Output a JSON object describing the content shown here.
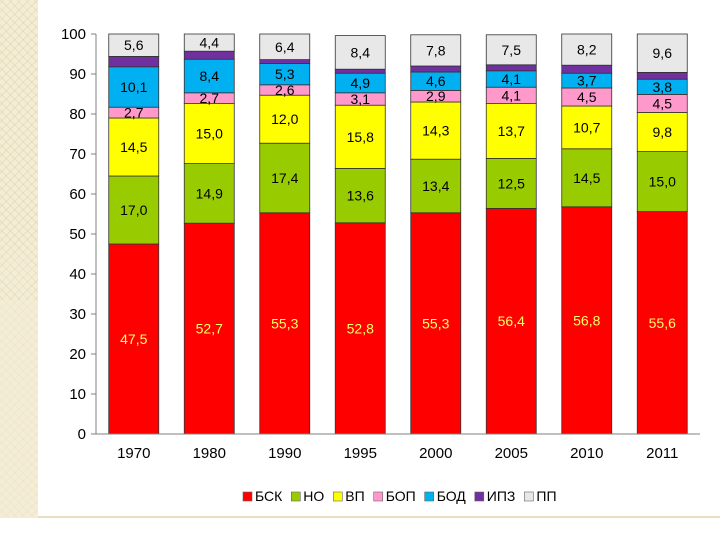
{
  "chart_data": {
    "type": "bar",
    "stacked": true,
    "categories": [
      "1970",
      "1980",
      "1990",
      "1995",
      "2000",
      "2005",
      "2010",
      "2011"
    ],
    "series": [
      {
        "name": "БСК",
        "color": "#ff0000",
        "label_color": "#ffff66",
        "values": [
          47.5,
          52.7,
          55.3,
          52.8,
          55.3,
          56.4,
          56.8,
          55.6
        ],
        "labels": [
          "47,5",
          "52,7",
          "55,3",
          "52,8",
          "55,3",
          "56,4",
          "56,8",
          "55,6"
        ]
      },
      {
        "name": "НО",
        "color": "#99cc00",
        "label_color": "#000000",
        "values": [
          17.0,
          14.9,
          17.4,
          13.6,
          13.4,
          12.5,
          14.5,
          15.0
        ],
        "labels": [
          "17,0",
          "14,9",
          "17,4",
          "13,6",
          "13,4",
          "12,5",
          "14,5",
          "15,0"
        ]
      },
      {
        "name": "ВП",
        "color": "#ffff00",
        "label_color": "#000000",
        "values": [
          14.5,
          15.0,
          12.0,
          15.8,
          14.3,
          13.7,
          10.7,
          9.8
        ],
        "labels": [
          "14,5",
          "15,0",
          "12,0",
          "15,8",
          "14,3",
          "13,7",
          "10,7",
          "9,8"
        ]
      },
      {
        "name": "БОП",
        "color": "#ff99cc",
        "label_color": "#000000",
        "values": [
          2.7,
          2.7,
          2.6,
          3.1,
          2.9,
          4.1,
          4.5,
          4.5
        ],
        "labels": [
          "2,7",
          "2,7",
          "2,6",
          "3,1",
          "2,9",
          "4,1",
          "4,5",
          "4,5"
        ]
      },
      {
        "name": "БОД",
        "color": "#00b0f0",
        "label_color": "#000000",
        "values": [
          10.1,
          8.4,
          5.3,
          4.9,
          4.6,
          4.1,
          3.7,
          3.8
        ],
        "labels": [
          "10,1",
          "8,4",
          "5,3",
          "4,9",
          "4,6",
          "4,1",
          "3,7",
          "3,8"
        ]
      },
      {
        "name": "ИПЗ",
        "color": "#7030a0",
        "label_color": "#000000",
        "values": [
          2.6,
          2.0,
          1.0,
          1.0,
          1.5,
          1.5,
          2.0,
          1.7
        ],
        "labels": [
          "",
          "",
          "",
          "",
          "",
          "",
          "",
          ""
        ]
      },
      {
        "name": "ПП",
        "color": "#e8e8e8",
        "label_color": "#000000",
        "values": [
          5.6,
          4.4,
          6.4,
          8.4,
          7.8,
          7.5,
          8.2,
          9.6
        ],
        "labels": [
          "5,6",
          "4,4",
          "6,4",
          "8,4",
          "7,8",
          "7,5",
          "8,2",
          "9,6"
        ]
      }
    ],
    "ylim": [
      0,
      100
    ],
    "yticks": [
      "0",
      "10",
      "20",
      "30",
      "40",
      "50",
      "60",
      "70",
      "80",
      "90",
      "100"
    ],
    "grid": false,
    "legend_position": "bottom"
  }
}
